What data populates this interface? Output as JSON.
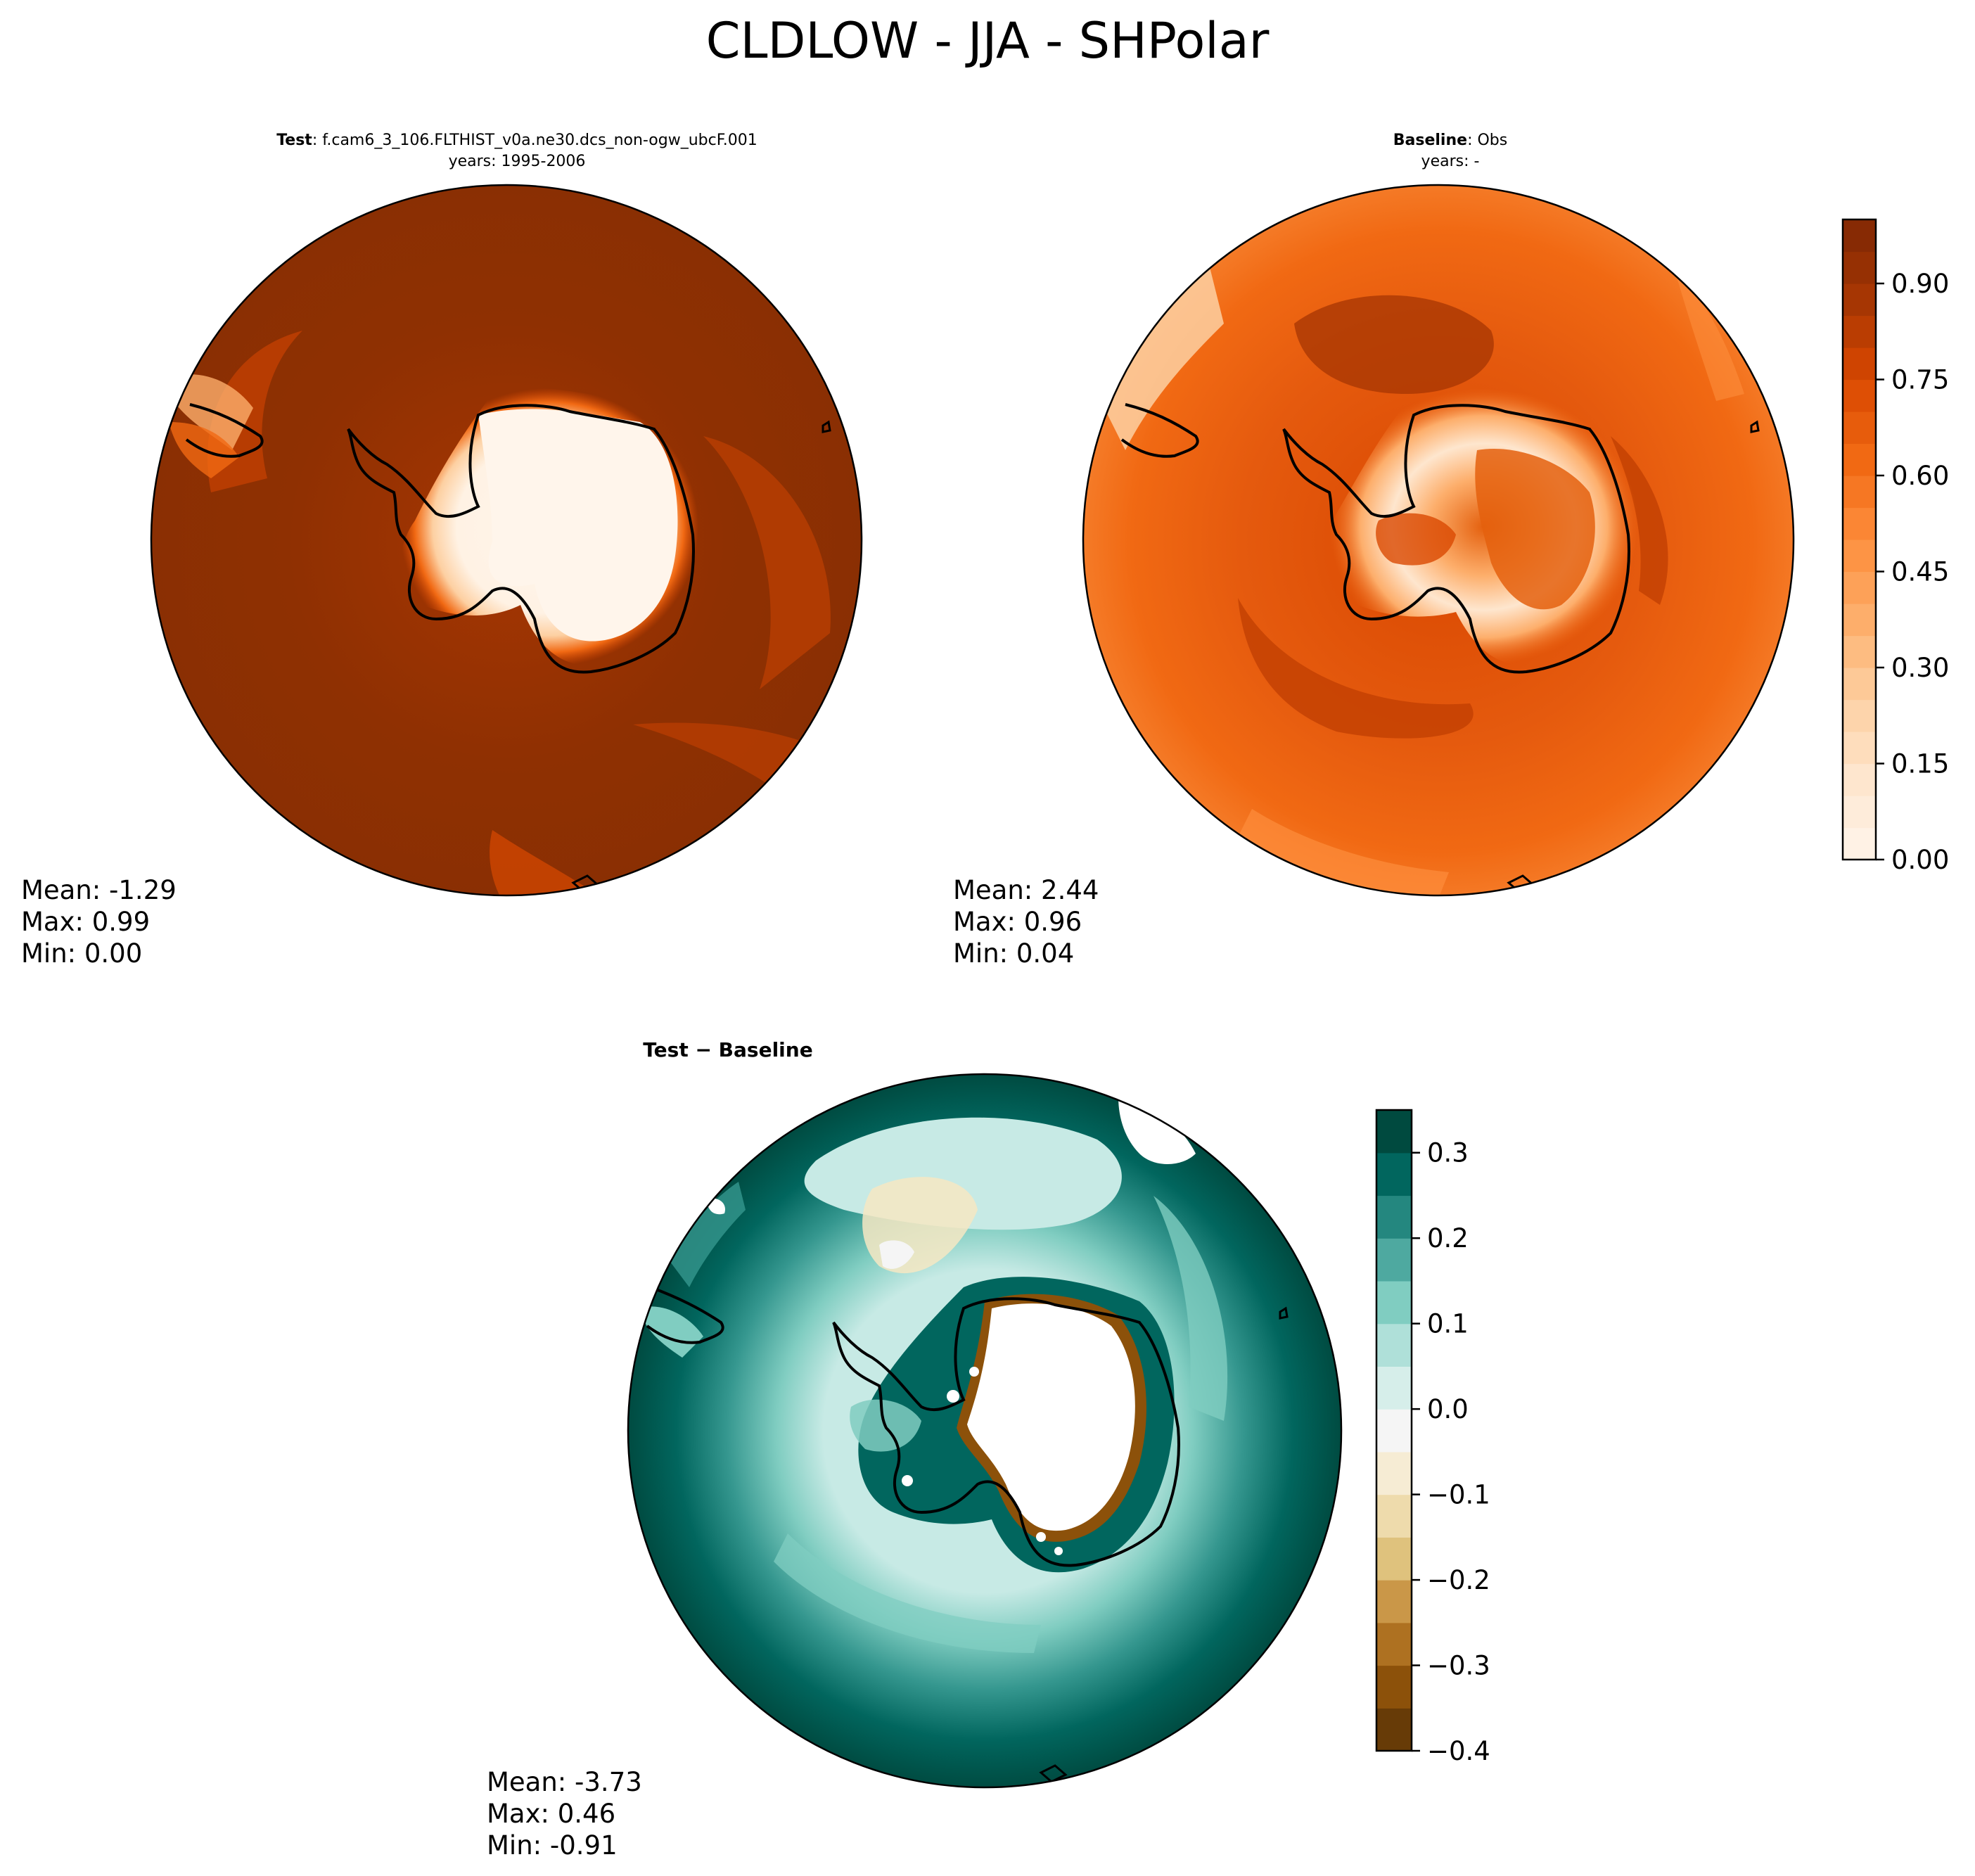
{
  "figure_title": "CLDLOW - JJA - SHPolar",
  "colors": {
    "seq_scale": [
      "#fff5eb",
      "#fee6ce",
      "#fdd0a2",
      "#fdae6b",
      "#fd8d3c",
      "#f16913",
      "#d94801",
      "#a63603",
      "#7f2704"
    ],
    "div_scale": [
      "#543005",
      "#8c510a",
      "#bf812d",
      "#dfc27d",
      "#f6e8c3",
      "#f5f5f5",
      "#c7eae5",
      "#80cdc1",
      "#35978f",
      "#01665e",
      "#003c30"
    ],
    "coastline": "#000000"
  },
  "panels": {
    "test": {
      "title_bold": "Test",
      "title_rest": ": f.cam6_3_106.FLTHIST_v0a.ne30.dcs_non-ogw_ubcF.001",
      "years": "years: 1995-2006",
      "stats": {
        "mean": "Mean: -1.29",
        "max": "Max:  0.99",
        "min": "Min:  0.00"
      }
    },
    "baseline": {
      "title_bold": "Baseline",
      "title_rest": ": Obs",
      "years": "years: -",
      "stats": {
        "mean": "Mean:  2.44",
        "max": "Max:  0.96",
        "min": "Min:  0.04"
      }
    },
    "diff": {
      "title_bold": "Test − Baseline",
      "stats": {
        "mean": "Mean: -3.73",
        "max": "Max:  0.46",
        "min": "Min: -0.91"
      }
    }
  },
  "chart_data": [
    {
      "type": "heatmap",
      "panel": "test",
      "projection": "south-polar-stereographic",
      "colorbar": {
        "range": [
          0,
          1
        ],
        "ticks": [
          "0.00",
          "0.15",
          "0.30",
          "0.45",
          "0.60",
          "0.75",
          "0.90"
        ],
        "levels": 20
      },
      "field": {
        "ocean": 0.9,
        "sea_ice_margin": 0.8,
        "antarctic_interior": 0.02,
        "coast_gradient": [
          0.2,
          0.5,
          0.7
        ]
      }
    },
    {
      "type": "heatmap",
      "panel": "baseline",
      "projection": "south-polar-stereographic",
      "colorbar": {
        "range": [
          0,
          1
        ],
        "ticks": [
          "0.00",
          "0.15",
          "0.30",
          "0.45",
          "0.60",
          "0.75",
          "0.90"
        ],
        "levels": 20
      },
      "field": {
        "ocean": 0.65,
        "storm_track": 0.8,
        "antarctic_interior": 0.25,
        "plateau_ring": 0.6
      }
    },
    {
      "type": "heatmap",
      "panel": "diff",
      "projection": "south-polar-stereographic",
      "colorbar": {
        "range": [
          -0.4,
          0.35
        ],
        "ticks": [
          "0.3",
          "0.2",
          "0.1",
          "0.0",
          "−0.1",
          "−0.2",
          "−0.3",
          "−0.4"
        ],
        "levels": 15
      },
      "field": {
        "outer_ocean": 0.3,
        "mid_ocean": 0.15,
        "inner_ring": 0.05,
        "antarctic_coast_min": -0.35,
        "antarctic_interior": "missing"
      }
    }
  ]
}
